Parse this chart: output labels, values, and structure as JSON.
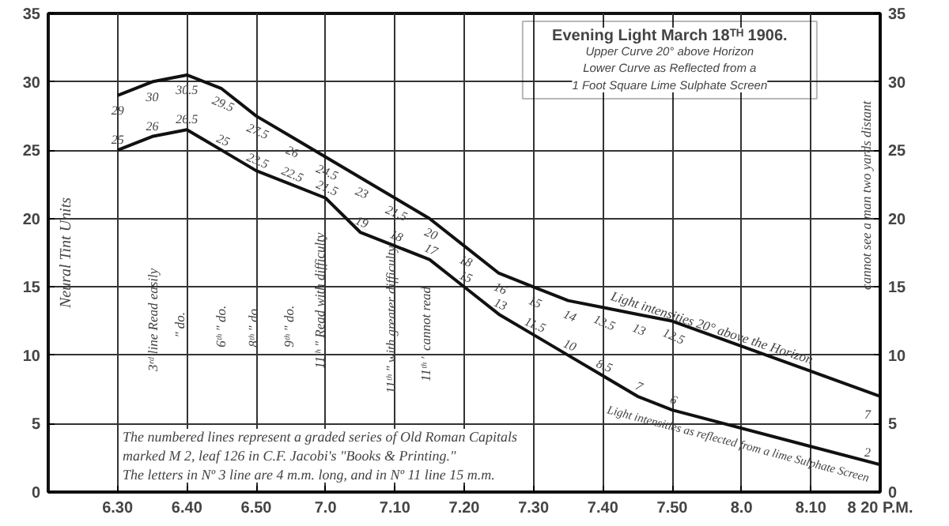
{
  "chart_data": {
    "type": "line",
    "title": "Evening Light March 18ᵀᴴ 1906.",
    "subtitle": "Upper Curve 20° above Horizon\nLower Curve as Reflected from a\n1 Foot Square Lime Sulphate Screen",
    "ylabel": "Neural Tint Units",
    "xlim": [
      "1906-03-18T18:20",
      "1906-03-18T20:20"
    ],
    "xticks": [
      {
        "value": "1906-03-18T18:30",
        "label": "6.30"
      },
      {
        "value": "1906-03-18T18:40",
        "label": "6.40"
      },
      {
        "value": "1906-03-18T18:50",
        "label": "6.50"
      },
      {
        "value": "1906-03-18T19:00",
        "label": "7.0"
      },
      {
        "value": "1906-03-18T19:10",
        "label": "7.10"
      },
      {
        "value": "1906-03-18T19:20",
        "label": "7.20"
      },
      {
        "value": "1906-03-18T19:30",
        "label": "7.30"
      },
      {
        "value": "1906-03-18T19:40",
        "label": "7.40"
      },
      {
        "value": "1906-03-18T19:50",
        "label": "7.50"
      },
      {
        "value": "1906-03-18T20:00",
        "label": "8.0"
      },
      {
        "value": "1906-03-18T20:10",
        "label": "8.10"
      },
      {
        "value": "1906-03-18T20:20",
        "label": "8 20 P.M."
      }
    ],
    "ylim": [
      0,
      35
    ],
    "yticks": [
      0,
      5,
      10,
      15,
      20,
      25,
      30,
      35
    ],
    "y2lim": [
      0,
      35
    ],
    "y2ticks": [
      0,
      5,
      10,
      15,
      20,
      25,
      30,
      35
    ],
    "grid": true,
    "marker": "none",
    "line_style": "solid",
    "data_labels": true,
    "series": [
      {
        "name": "Light intensities 20° above the Horizon",
        "color": "#111111",
        "x": [
          "1906-03-18T18:30",
          "1906-03-18T18:35",
          "1906-03-18T18:40",
          "1906-03-18T18:45",
          "1906-03-18T18:50",
          "1906-03-18T18:55",
          "1906-03-18T19:00",
          "1906-03-18T19:05",
          "1906-03-18T19:10",
          "1906-03-18T19:15",
          "1906-03-18T19:20",
          "1906-03-18T19:25",
          "1906-03-18T19:30",
          "1906-03-18T19:35",
          "1906-03-18T19:40",
          "1906-03-18T19:45",
          "1906-03-18T19:50",
          "1906-03-18T20:20"
        ],
        "values": [
          29,
          30,
          30.5,
          29.5,
          27.5,
          26,
          24.5,
          23,
          21.5,
          20,
          18,
          16,
          15,
          14,
          13.5,
          13,
          12.5,
          7
        ]
      },
      {
        "name": "Light intensities as reflected from a lime Sulphate Screen",
        "color": "#111111",
        "x": [
          "1906-03-18T18:30",
          "1906-03-18T18:35",
          "1906-03-18T18:40",
          "1906-03-18T18:45",
          "1906-03-18T18:50",
          "1906-03-18T18:55",
          "1906-03-18T19:00",
          "1906-03-18T19:05",
          "1906-03-18T19:10",
          "1906-03-18T19:15",
          "1906-03-18T19:20",
          "1906-03-18T19:25",
          "1906-03-18T19:30",
          "1906-03-18T19:35",
          "1906-03-18T19:40",
          "1906-03-18T19:45",
          "1906-03-18T19:50",
          "1906-03-18T20:20"
        ],
        "values": [
          25,
          26,
          26.5,
          25,
          23.5,
          22.5,
          21.5,
          19,
          18,
          17,
          15,
          13,
          11.5,
          10,
          8.5,
          7,
          6,
          2
        ]
      }
    ],
    "annotations": [
      "3ʳᵈ line Read easily",
      "″    do.",
      "6ᵗʰ  ″    do.",
      "8ᵗʰ  ″    do.",
      "9ᵗʰ  ″    do.",
      "11ᵗʰ ″ Read with difficulty",
      "11ᵗʰ ″ with greater difficulty",
      "11ᵗʰ ″ cannot read",
      "cannot see a man two yards distant",
      "The numbered lines represent a graded series of Old Roman Capitals\nmarked M 2, leaf 126 in C.F. Jacobi's \"Books & Printing.\"\nThe letters in Nº 3 line are 4 m.m. long, and in Nº 11 line 15 m.m."
    ]
  }
}
